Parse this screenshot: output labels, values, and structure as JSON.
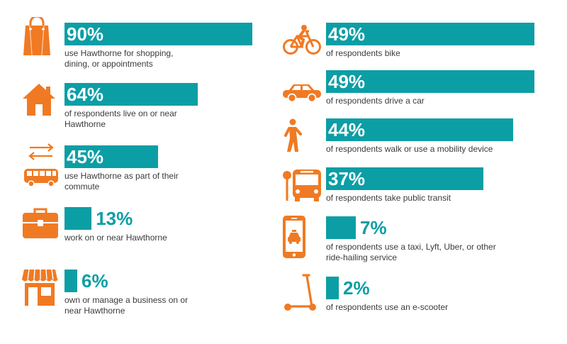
{
  "colors": {
    "bar": "#0c9ea5",
    "icon": "#f07a23",
    "label": "#3b3b3b",
    "pct_on_bar": "#ffffff"
  },
  "chart_data": [
    {
      "type": "bar",
      "items": [
        {
          "value": 90,
          "label": "90%",
          "text": "use Hawthorne for shopping, dining, or appointments",
          "icon": "shopping-bag-icon"
        },
        {
          "value": 64,
          "label": "64%",
          "text": "of respondents live on or near Hawthorne",
          "icon": "house-icon"
        },
        {
          "value": 45,
          "label": "45%",
          "text": "use Hawthorne as part of their commute",
          "icon": "commute-bus-icon"
        },
        {
          "value": 13,
          "label": "13%",
          "text": "work on or near Hawthorne",
          "icon": "briefcase-icon"
        },
        {
          "value": 6,
          "label": "6%",
          "text": "own or manage a business on or near Hawthorne",
          "icon": "storefront-icon"
        }
      ]
    },
    {
      "type": "bar",
      "items": [
        {
          "value": 49,
          "label": "49%",
          "text": "of respondents bike",
          "icon": "bicycle-icon"
        },
        {
          "value": 49,
          "label": "49%",
          "text": "of respondents drive a car",
          "icon": "car-icon"
        },
        {
          "value": 44,
          "label": "44%",
          "text": "of respondents walk or use a mobility device",
          "icon": "pedestrian-icon"
        },
        {
          "value": 37,
          "label": "37%",
          "text": "of respondents take public transit",
          "icon": "bus-stop-icon"
        },
        {
          "value": 7,
          "label": "7%",
          "text": "of respondents use a taxi, Lyft, Uber, or other ride-hailing service",
          "icon": "rideshare-phone-icon"
        },
        {
          "value": 2,
          "label": "2%",
          "text": "of respondents use an e-scooter",
          "icon": "e-scooter-icon"
        }
      ]
    }
  ]
}
